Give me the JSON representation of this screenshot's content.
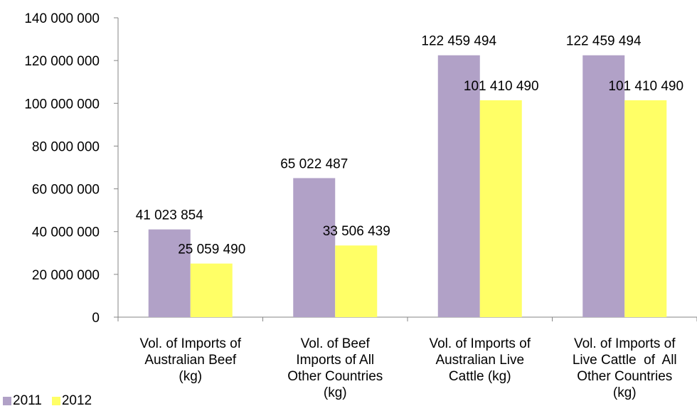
{
  "chart_data": {
    "type": "bar",
    "title": "",
    "xlabel": "",
    "ylabel": "",
    "categories": [
      [
        "Vol. of Imports of",
        "Australian Beef",
        "(kg)"
      ],
      [
        "Vol. of Beef",
        "Imports of All",
        "Other Countries",
        "(kg)"
      ],
      [
        "Vol. of Imports of",
        "Australian Live",
        "Cattle (kg)"
      ],
      [
        "Vol. of Imports of",
        "Live Cattle  of  All",
        "Other Countries",
        "(kg)"
      ]
    ],
    "series": [
      {
        "name": "2011",
        "color": "#b1a1c7",
        "values": [
          41023854,
          65022487,
          122459494,
          122459494
        ],
        "labels": [
          "41 023 854",
          "65 022 487",
          "122 459 494",
          "122 459 494"
        ]
      },
      {
        "name": "2012",
        "color": "#ffff66",
        "values": [
          25059490,
          33506439,
          101410490,
          101410490
        ],
        "labels": [
          "25 059 490",
          "33 506 439",
          "101 410 490",
          "101 410 490"
        ]
      }
    ],
    "ylim": [
      0,
      140000000
    ],
    "yticks": [
      0,
      20000000,
      40000000,
      60000000,
      80000000,
      100000000,
      120000000,
      140000000
    ],
    "ytick_labels": [
      "0",
      "20 000 000",
      "40 000 000",
      "60 000 000",
      "80 000 000",
      "100 000 000",
      "120 000 000",
      "140 000 000"
    ],
    "grid": false,
    "legend_position": "bottom-left"
  }
}
